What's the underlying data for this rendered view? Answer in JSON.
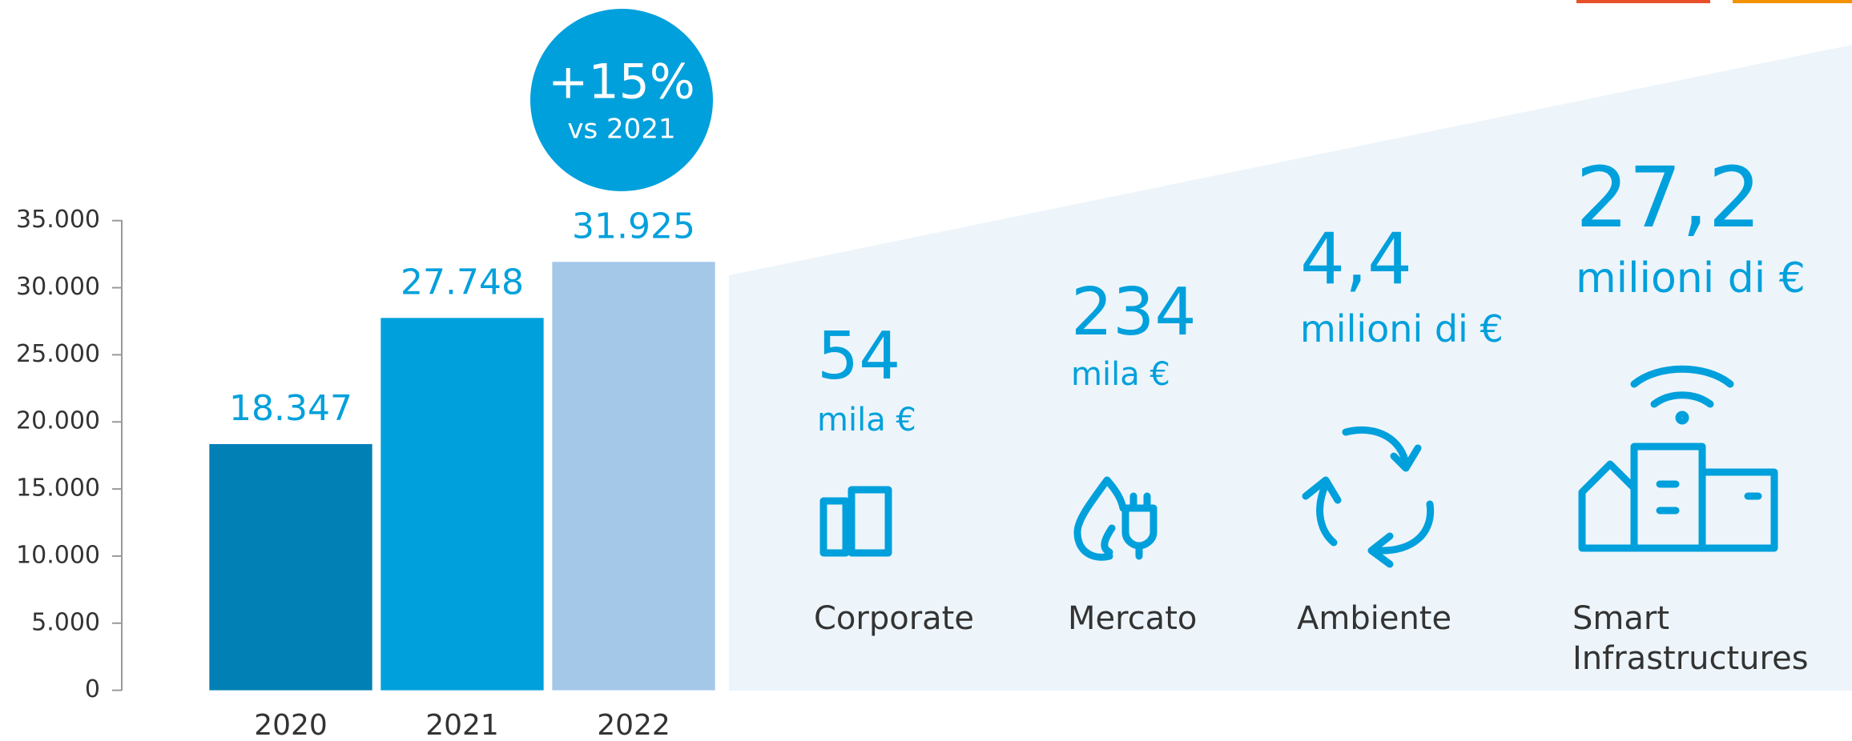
{
  "chart_data": {
    "type": "bar",
    "categories": [
      "2020",
      "2021",
      "2022"
    ],
    "values": [
      18347,
      27748,
      31925
    ],
    "value_labels": [
      "18.347",
      "27.748",
      "31.925"
    ],
    "colors": [
      "#0080b4",
      "#00a0dc",
      "#a3c8e8"
    ],
    "ylim": [
      0,
      35000
    ],
    "yticks": [
      0,
      {
        "value": 5000,
        "label": "5.000"
      },
      {
        "value": 10000,
        "label": "10.000"
      },
      {
        "value": 15000,
        "label": "15.000"
      },
      {
        "value": 20000,
        "label": "20.000"
      },
      {
        "value": 25000,
        "label": "25.000"
      },
      {
        "value": 30000,
        "label": "30.000"
      },
      {
        "value": 35000,
        "label": "35.000"
      }
    ],
    "grid": false
  },
  "badge": {
    "value": "+15%",
    "note": "vs 2021"
  },
  "breakdown": [
    {
      "value": "54",
      "unit": "mila €",
      "label": "Corporate"
    },
    {
      "value": "234",
      "unit": "mila €",
      "label": "Mercato"
    },
    {
      "value": "4,4",
      "unit": "milioni di €",
      "label": "Ambiente"
    },
    {
      "value": "27,2",
      "unit": "milioni di €",
      "label": "Smart Infrastructures"
    }
  ]
}
